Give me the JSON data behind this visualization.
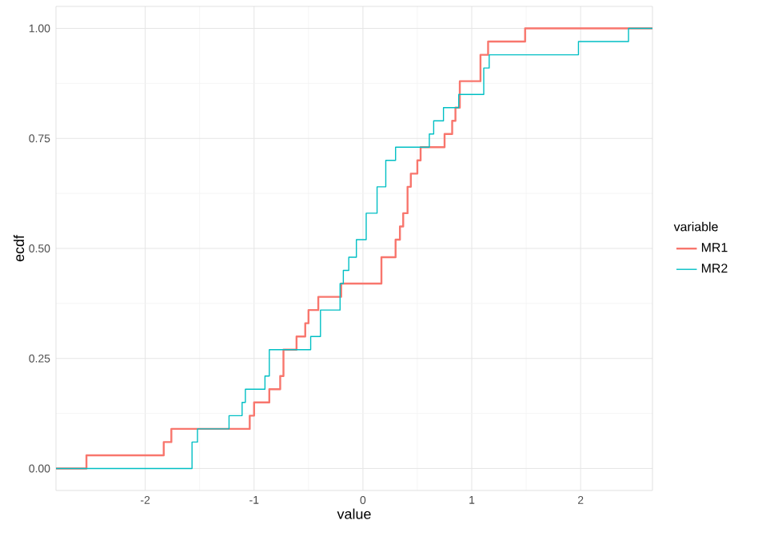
{
  "chart_data": {
    "type": "step",
    "xlabel": "value",
    "ylabel": "ecdf",
    "legend_title": "variable",
    "legend": "right",
    "grid": true,
    "xlim": [
      -2.82,
      2.66
    ],
    "ylim": [
      -0.05,
      1.05
    ],
    "xticks": [
      -2,
      -1,
      0,
      1,
      2
    ],
    "yticks": [
      {
        "value": 0,
        "label": "0.00"
      },
      {
        "value": 0.25,
        "label": "0.25"
      },
      {
        "value": 0.5,
        "label": "0.50"
      },
      {
        "value": 0.75,
        "label": "0.75"
      },
      {
        "value": 1,
        "label": "1.00"
      }
    ],
    "series": [
      {
        "name": "MR1",
        "color": "#f8766d",
        "x": [
          -2.82,
          -2.54,
          -1.83,
          -1.76,
          -1.04,
          -1.0,
          -0.86,
          -0.76,
          -0.73,
          -0.61,
          -0.53,
          -0.5,
          -0.41,
          -0.2,
          0.17,
          0.3,
          0.34,
          0.37,
          0.41,
          0.44,
          0.5,
          0.53,
          0.75,
          0.82,
          0.85,
          0.89,
          1.08,
          1.15,
          1.49,
          2.66
        ],
        "values": [
          0,
          0.03,
          0.06,
          0.09,
          0.12,
          0.15,
          0.18,
          0.21,
          0.27,
          0.3,
          0.33,
          0.36,
          0.39,
          0.42,
          0.48,
          0.52,
          0.55,
          0.58,
          0.64,
          0.67,
          0.7,
          0.73,
          0.76,
          0.79,
          0.82,
          0.88,
          0.94,
          0.97,
          1.0,
          1.0
        ]
      },
      {
        "name": "MR2",
        "color": "#00bfc4",
        "x": [
          -2.82,
          -1.57,
          -1.52,
          -1.23,
          -1.11,
          -1.08,
          -0.9,
          -0.86,
          -0.48,
          -0.39,
          -0.21,
          -0.18,
          -0.13,
          -0.06,
          0.03,
          0.13,
          0.21,
          0.3,
          0.61,
          0.65,
          0.74,
          0.88,
          1.11,
          1.16,
          1.98,
          2.44,
          2.66
        ],
        "values": [
          0,
          0.06,
          0.09,
          0.12,
          0.15,
          0.18,
          0.21,
          0.27,
          0.3,
          0.36,
          0.42,
          0.45,
          0.48,
          0.52,
          0.58,
          0.64,
          0.7,
          0.73,
          0.76,
          0.79,
          0.82,
          0.85,
          0.91,
          0.94,
          0.97,
          1.0,
          1.0
        ]
      }
    ]
  }
}
